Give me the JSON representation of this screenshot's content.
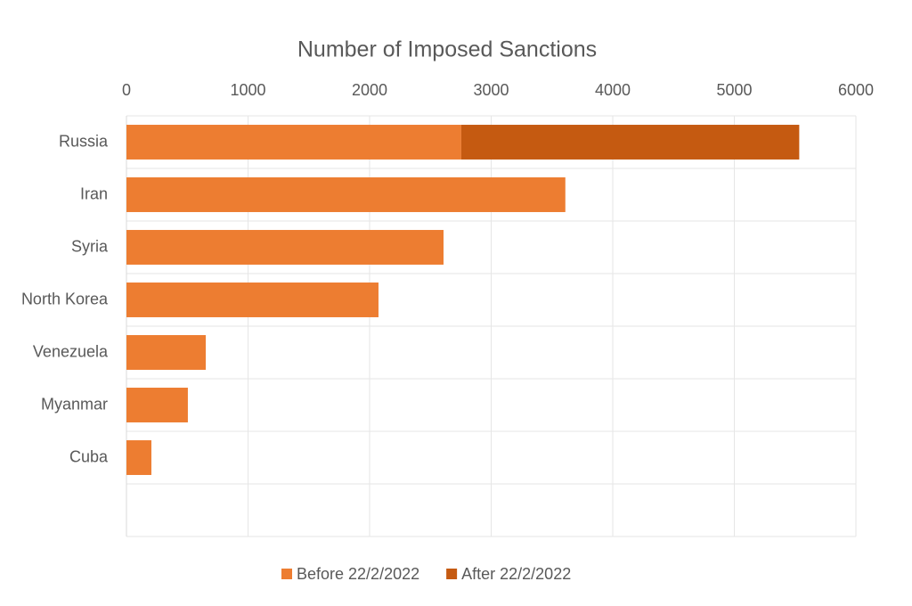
{
  "chart_data": {
    "type": "bar",
    "orientation": "horizontal",
    "stacked": true,
    "title": "Number of Imposed Sanctions",
    "categories": [
      "Russia",
      "Iran",
      "Syria",
      "North Korea",
      "Venezuela",
      "Myanmar",
      "Cuba",
      null
    ],
    "series": [
      {
        "name": "Before 22/2/2022",
        "color": "#ed7d31",
        "values": [
          2754,
          3610,
          2608,
          2073,
          652,
          505,
          205,
          null
        ]
      },
      {
        "name": "After 22/2/2022",
        "color": "#c55a11",
        "values": [
          2780,
          null,
          null,
          null,
          null,
          null,
          null,
          null
        ]
      }
    ],
    "xlim": [
      0,
      6000
    ],
    "xticks": [
      0,
      1000,
      2000,
      3000,
      4000,
      5000,
      6000
    ],
    "grid": true,
    "legend": "bottom"
  }
}
